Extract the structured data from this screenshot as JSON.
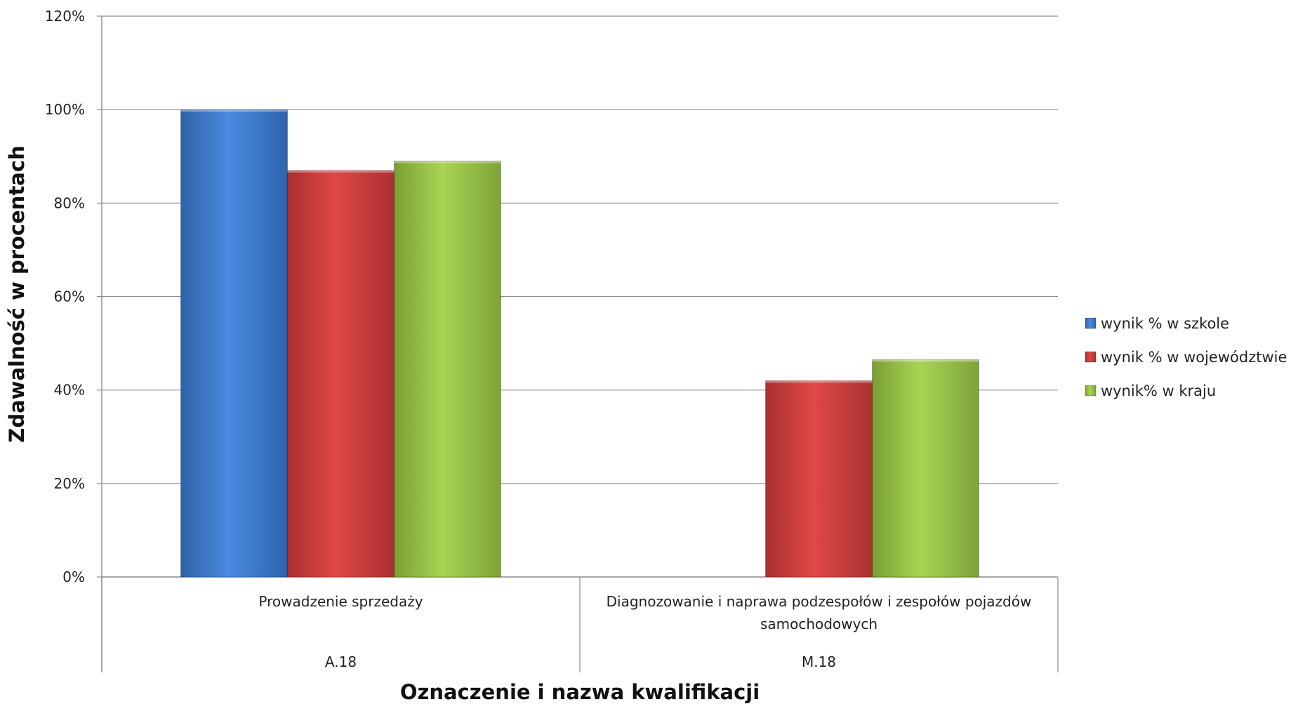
{
  "chart_data": {
    "type": "bar",
    "title": "",
    "ylabel": "Zdawalność w procentach",
    "xlabel": "Oznaczenie i nazwa kwalifikacji",
    "ylim": [
      0,
      120
    ],
    "y_ticks": [
      "0%",
      "20%",
      "40%",
      "60%",
      "80%",
      "100%",
      "120%"
    ],
    "grid": true,
    "legend_position": "right",
    "categories": [
      {
        "name": [
          "Prowadzenie sprzedaży"
        ],
        "code": "A.18"
      },
      {
        "name": [
          "Diagnozowanie i naprawa podzespołów i zespołów pojazdów",
          "samochodowych"
        ],
        "code": "M.18"
      }
    ],
    "series": [
      {
        "name": "wynik % w szkole",
        "color": "#3d7fd1",
        "values": [
          100,
          null
        ]
      },
      {
        "name": "wynik % w województwie",
        "color": "#d23f3f",
        "values": [
          87,
          42
        ]
      },
      {
        "name": "wynik% w kraju",
        "color": "#9bc548",
        "values": [
          89,
          46.5
        ]
      }
    ]
  }
}
